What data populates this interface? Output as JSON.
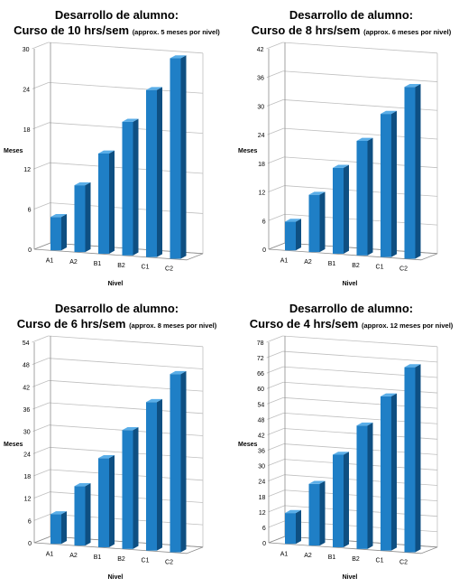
{
  "colors": {
    "bar_front": "#1f7fc6",
    "bar_side": "#0e4f82",
    "bar_top": "#5aaee8",
    "grid": "#bfbfbf",
    "axis": "#8c8c8c"
  },
  "chart_data": [
    {
      "type": "bar",
      "title": "Desarrollo de alumno:",
      "subtitle": "Curso de 10 hrs/sem",
      "note": "(approx. 5 meses por nivel)",
      "xlabel": "Nivel",
      "ylabel": "Meses",
      "categories": [
        "A1",
        "A2",
        "B1",
        "B2",
        "C1",
        "C2"
      ],
      "values": [
        5,
        10,
        15,
        20,
        25,
        30
      ],
      "ylim": [
        0,
        30
      ],
      "yticks": [
        "0",
        "6",
        "12",
        "18",
        "24",
        "30"
      ],
      "grid": true
    },
    {
      "type": "bar",
      "title": "Desarrollo de alumno:",
      "subtitle": "Curso de 8 hrs/sem",
      "note": "(approx. 6 meses por nivel)",
      "xlabel": "Nivel",
      "ylabel": "Meses",
      "categories": [
        "A1",
        "A2",
        "B1",
        "B2",
        "C1",
        "C2"
      ],
      "values": [
        6,
        12,
        18,
        24,
        30,
        36
      ],
      "ylim": [
        0,
        42
      ],
      "yticks": [
        "0",
        "6",
        "12",
        "18",
        "24",
        "30",
        "36",
        "42"
      ],
      "grid": true
    },
    {
      "type": "bar",
      "title": "Desarrollo de alumno:",
      "subtitle": "Curso de 6 hrs/sem",
      "note": "(approx. 8 meses por nivel)",
      "xlabel": "Nivel",
      "ylabel": "Meses",
      "categories": [
        "A1",
        "A2",
        "B1",
        "B2",
        "C1",
        "C2"
      ],
      "values": [
        8,
        16,
        24,
        32,
        40,
        48
      ],
      "ylim": [
        0,
        54
      ],
      "yticks": [
        "0",
        "6",
        "12",
        "18",
        "24",
        "30",
        "36",
        "42",
        "48",
        "54"
      ],
      "grid": true
    },
    {
      "type": "bar",
      "title": "Desarrollo de alumno:",
      "subtitle": "Curso de 4 hrs/sem",
      "note": "(approx. 12 meses por nivel)",
      "xlabel": "Nivel",
      "ylabel": "Meses",
      "categories": [
        "A1",
        "A2",
        "B1",
        "B2",
        "C1",
        "C2"
      ],
      "values": [
        12,
        24,
        36,
        48,
        60,
        72
      ],
      "ylim": [
        0,
        78
      ],
      "yticks": [
        "0",
        "6",
        "12",
        "18",
        "24",
        "30",
        "36",
        "42",
        "48",
        "54",
        "60",
        "66",
        "72",
        "78"
      ],
      "grid": true
    }
  ]
}
